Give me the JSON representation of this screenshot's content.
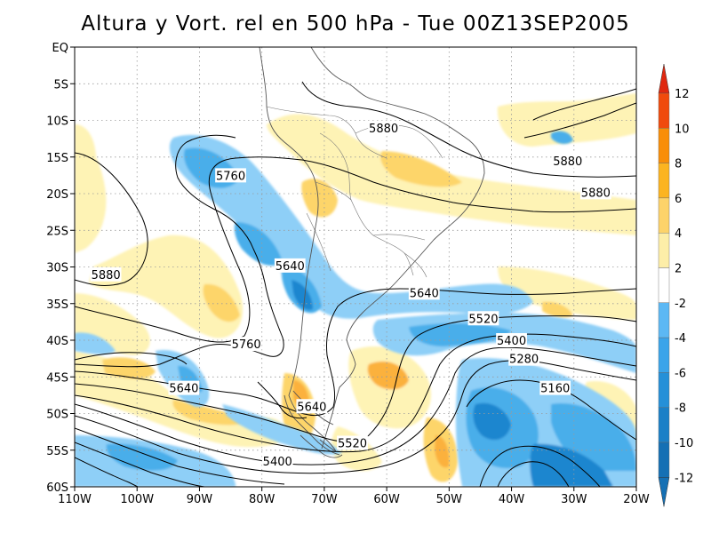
{
  "title": "Altura y Vort. rel en 500 hPa - Tue 00Z13SEP2005",
  "lat_labels": [
    "EQ",
    "5S",
    "10S",
    "15S",
    "20S",
    "25S",
    "30S",
    "35S",
    "40S",
    "45S",
    "50S",
    "55S",
    "60S"
  ],
  "lon_labels": [
    "110W",
    "100W",
    "90W",
    "80W",
    "70W",
    "60W",
    "50W",
    "40W",
    "30W",
    "20W"
  ],
  "contour_labels": [
    {
      "text": "5880",
      "lon": -60.5,
      "lat": -11.0
    },
    {
      "text": "5880",
      "lon": -31.0,
      "lat": -15.5
    },
    {
      "text": "5880",
      "lon": -26.5,
      "lat": -19.8
    },
    {
      "text": "5760",
      "lon": -85.0,
      "lat": -17.5
    },
    {
      "text": "5640",
      "lon": -75.5,
      "lat": -29.8
    },
    {
      "text": "5880",
      "lon": -105.0,
      "lat": -31.0
    },
    {
      "text": "5640",
      "lon": -54.0,
      "lat": -33.5
    },
    {
      "text": "5520",
      "lon": -44.5,
      "lat": -37.0
    },
    {
      "text": "5400",
      "lon": -40.0,
      "lat": -40.0
    },
    {
      "text": "5760",
      "lon": -82.5,
      "lat": -40.5
    },
    {
      "text": "5280",
      "lon": -38.0,
      "lat": -42.5
    },
    {
      "text": "5640",
      "lon": -92.5,
      "lat": -46.5
    },
    {
      "text": "5160",
      "lon": -33.0,
      "lat": -46.5
    },
    {
      "text": "5640",
      "lon": -72.0,
      "lat": -49.0
    },
    {
      "text": "5520",
      "lon": -65.5,
      "lat": -54.0
    },
    {
      "text": "5400",
      "lon": -77.5,
      "lat": -56.5
    }
  ],
  "colorbar": {
    "labels": [
      "12",
      "10",
      "8",
      "6",
      "4",
      "2",
      "-2",
      "-4",
      "-6",
      "-8",
      "-10",
      "-12"
    ],
    "colors": [
      "#f04a0d",
      "#f98e08",
      "#fcb420",
      "#fdd36a",
      "#fdeea8",
      "#ffffff",
      "#5cb8f4",
      "#3aa4ea",
      "#2590d8",
      "#1b80c7",
      "#1570b4"
    ],
    "top_arrow": "#e02810",
    "bottom_arrow": "#1570b4"
  },
  "colors": {
    "warm_light": "#fef3b5",
    "warm_mid": "#fdd56a",
    "warm_strong": "#fbb13c",
    "warm_max": "#f98e08",
    "cold_light": "#8ecff7",
    "cold_mid": "#4aaeea",
    "cold_strong": "#1d86cf"
  }
}
